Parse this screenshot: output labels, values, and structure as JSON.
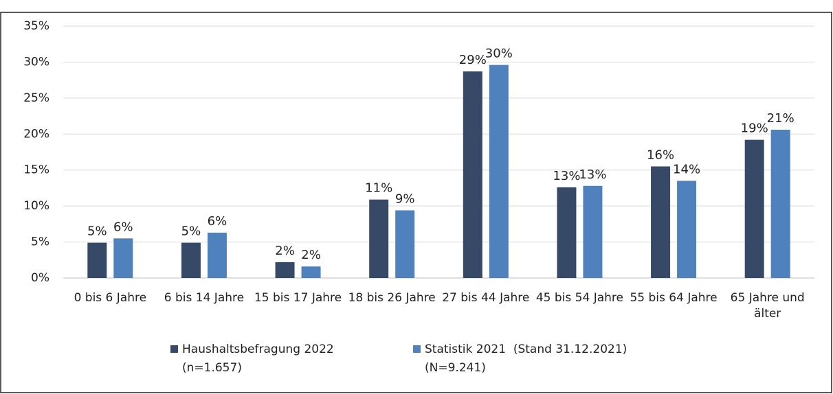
{
  "chart_data": {
    "type": "bar",
    "categories": [
      "0 bis 6 Jahre",
      "6 bis 14 Jahre",
      "15 bis 17 Jahre",
      "18 bis 26 Jahre",
      "27 bis 44 Jahre",
      "45 bis 54 Jahre",
      "55 bis 64 Jahre",
      "65 Jahre und älter"
    ],
    "series": [
      {
        "name": "Haushaltsbefragung 2022 (n=1.657)",
        "color": "#364a68",
        "values": [
          4.9,
          4.9,
          2.2,
          10.9,
          28.7,
          12.6,
          15.5,
          19.2
        ],
        "value_labels": [
          "5%",
          "5%",
          "2%",
          "11%",
          "29%",
          "13%",
          "16%",
          "19%"
        ]
      },
      {
        "name": "Statistik 2021  (Stand 31.12.2021) (N=9.241)",
        "color": "#4f81bd",
        "values": [
          5.5,
          6.3,
          1.6,
          9.4,
          29.6,
          12.8,
          13.5,
          20.6
        ],
        "value_labels": [
          "6%",
          "6%",
          "2%",
          "9%",
          "30%",
          "13%",
          "14%",
          "21%"
        ]
      }
    ],
    "ylim": [
      0,
      35
    ],
    "yticks": [
      {
        "value": 0,
        "label": "0%"
      },
      {
        "value": 5,
        "label": "5%"
      },
      {
        "value": 10,
        "label": "10%"
      },
      {
        "value": 15,
        "label": "15%"
      },
      {
        "value": 20,
        "label": "20%"
      },
      {
        "value": 25,
        "label": "25%"
      },
      {
        "value": 30,
        "label": "30%"
      },
      {
        "value": 35,
        "label": "35%"
      }
    ],
    "grid": true,
    "legend": "bottom"
  }
}
